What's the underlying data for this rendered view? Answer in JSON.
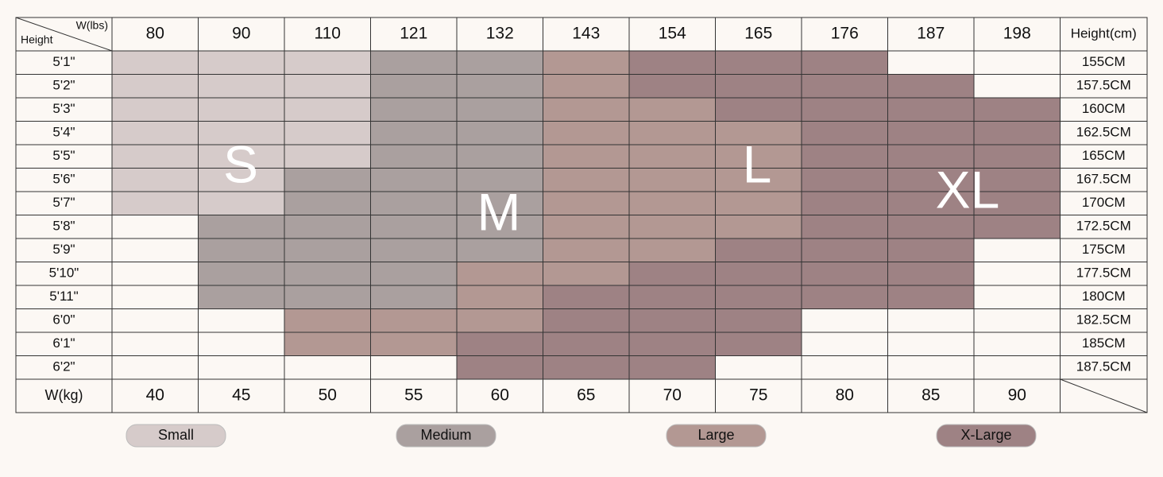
{
  "header": {
    "weight_lbs_label": "W(lbs)",
    "height_label": "Height",
    "height_cm_label": "Height(cm)",
    "weight_kg_label": "W(kg)"
  },
  "weights_lbs": [
    "80",
    "90",
    "110",
    "121",
    "132",
    "143",
    "154",
    "165",
    "176",
    "187",
    "198"
  ],
  "weights_kg": [
    "40",
    "45",
    "50",
    "55",
    "60",
    "65",
    "70",
    "75",
    "80",
    "85",
    "90"
  ],
  "rows": [
    {
      "height": "5'1\"",
      "cm": "155CM",
      "sizes": [
        "S",
        "S",
        "S",
        "M",
        "M",
        "L",
        "XL",
        "XL",
        "XL",
        null,
        null
      ]
    },
    {
      "height": "5'2\"",
      "cm": "157.5CM",
      "sizes": [
        "S",
        "S",
        "S",
        "M",
        "M",
        "L",
        "XL",
        "XL",
        "XL",
        "XL",
        null
      ]
    },
    {
      "height": "5'3\"",
      "cm": "160CM",
      "sizes": [
        "S",
        "S",
        "S",
        "M",
        "M",
        "L",
        "L",
        "XL",
        "XL",
        "XL",
        "XL"
      ]
    },
    {
      "height": "5'4\"",
      "cm": "162.5CM",
      "sizes": [
        "S",
        "S",
        "S",
        "M",
        "M",
        "L",
        "L",
        "L",
        "XL",
        "XL",
        "XL"
      ]
    },
    {
      "height": "5'5\"",
      "cm": "165CM",
      "sizes": [
        "S",
        "S",
        "S",
        "M",
        "M",
        "L",
        "L",
        "L",
        "XL",
        "XL",
        "XL"
      ]
    },
    {
      "height": "5'6\"",
      "cm": "167.5CM",
      "sizes": [
        "S",
        "S",
        "M",
        "M",
        "M",
        "L",
        "L",
        "L",
        "XL",
        "XL",
        "XL"
      ]
    },
    {
      "height": "5'7\"",
      "cm": "170CM",
      "sizes": [
        "S",
        "S",
        "M",
        "M",
        "M",
        "L",
        "L",
        "L",
        "XL",
        "XL",
        "XL"
      ]
    },
    {
      "height": "5'8\"",
      "cm": "172.5CM",
      "sizes": [
        null,
        "M",
        "M",
        "M",
        "M",
        "L",
        "L",
        "L",
        "XL",
        "XL",
        "XL"
      ]
    },
    {
      "height": "5'9\"",
      "cm": "175CM",
      "sizes": [
        null,
        "M",
        "M",
        "M",
        "M",
        "L",
        "L",
        "XL",
        "XL",
        "XL",
        null
      ]
    },
    {
      "height": "5'10\"",
      "cm": "177.5CM",
      "sizes": [
        null,
        "M",
        "M",
        "M",
        "L",
        "L",
        "XL",
        "XL",
        "XL",
        "XL",
        null
      ]
    },
    {
      "height": "5'11\"",
      "cm": "180CM",
      "sizes": [
        null,
        "M",
        "M",
        "M",
        "L",
        "XL",
        "XL",
        "XL",
        "XL",
        "XL",
        null
      ]
    },
    {
      "height": "6'0\"",
      "cm": "182.5CM",
      "sizes": [
        null,
        null,
        "L",
        "L",
        "L",
        "XL",
        "XL",
        "XL",
        null,
        null,
        null
      ]
    },
    {
      "height": "6'1\"",
      "cm": "185CM",
      "sizes": [
        null,
        null,
        "L",
        "L",
        "XL",
        "XL",
        "XL",
        "XL",
        null,
        null,
        null
      ]
    },
    {
      "height": "6'2\"",
      "cm": "187.5CM",
      "sizes": [
        null,
        null,
        null,
        null,
        "XL",
        "XL",
        "XL",
        null,
        null,
        null,
        null
      ]
    }
  ],
  "sizes": [
    {
      "key": "S",
      "label": "Small",
      "color": "#d6cbca"
    },
    {
      "key": "M",
      "label": "Medium",
      "color": "#aaa09f"
    },
    {
      "key": "L",
      "label": "Large",
      "color": "#b39893"
    },
    {
      "key": "XL",
      "label": "X-Large",
      "color": "#9e8284"
    }
  ]
}
